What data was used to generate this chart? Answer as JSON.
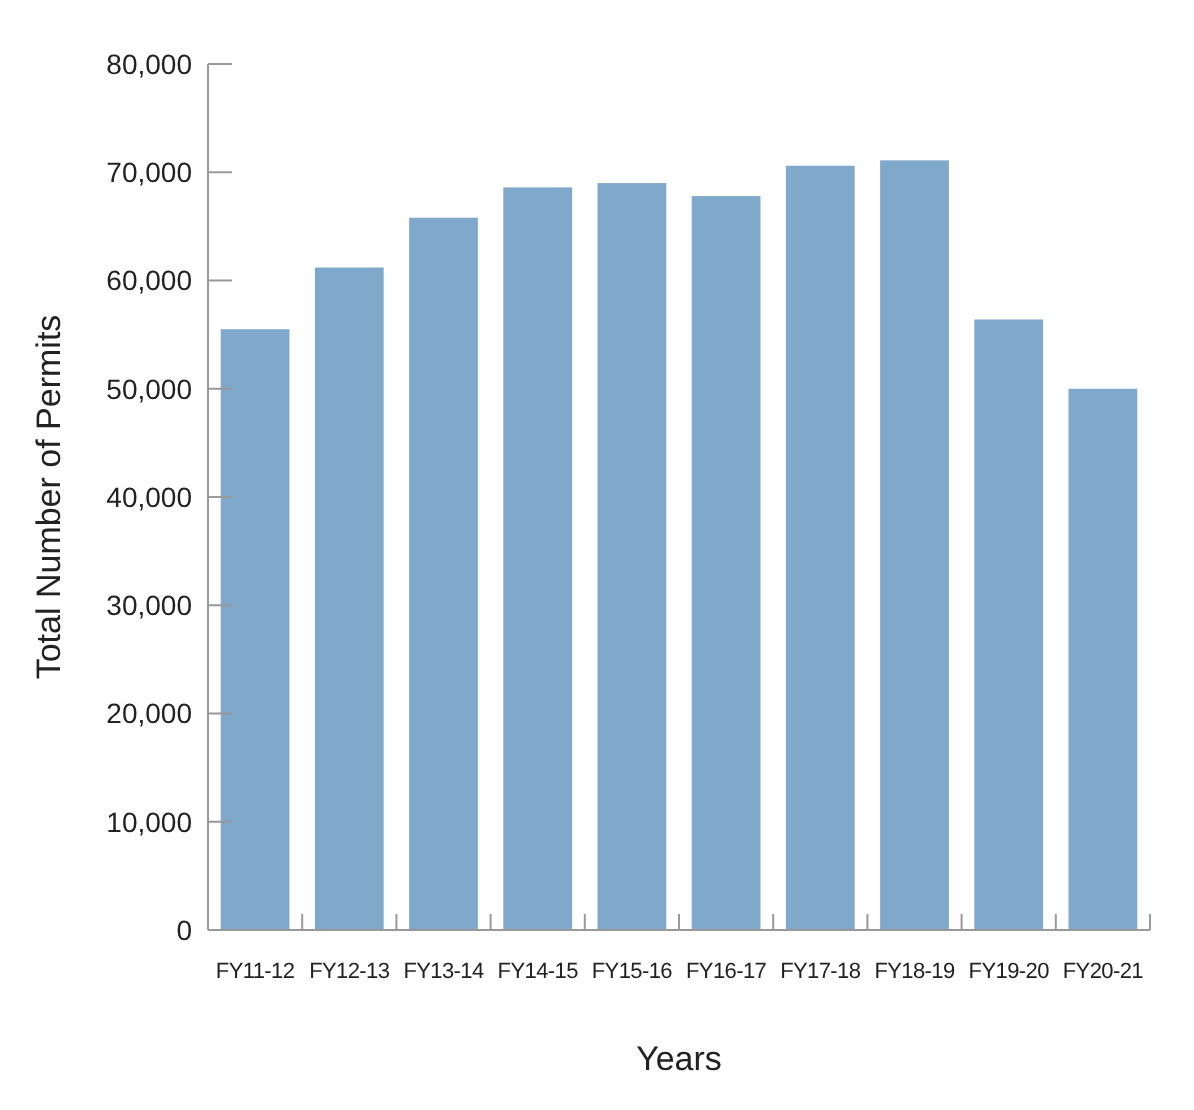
{
  "chart_data": {
    "type": "bar",
    "xlabel": "Years",
    "ylabel": "Total Number of Permits",
    "categories": [
      "FY11-12",
      "FY12-13",
      "FY13-14",
      "FY14-15",
      "FY15-16",
      "FY16-17",
      "FY17-18",
      "FY18-19",
      "FY19-20",
      "FY20-21"
    ],
    "values": [
      55500,
      61200,
      65800,
      68600,
      69000,
      67800,
      70600,
      71100,
      56400,
      50000
    ],
    "color": "#80a8ca",
    "ylim": [
      0,
      80000
    ],
    "yticks": [
      {
        "value": 0,
        "label": "0"
      },
      {
        "value": 10000,
        "label": "10,000"
      },
      {
        "value": 20000,
        "label": "20,000"
      },
      {
        "value": 30000,
        "label": "30,000"
      },
      {
        "value": 40000,
        "label": "40,000"
      },
      {
        "value": 50000,
        "label": "50,000"
      },
      {
        "value": 60000,
        "label": "60,000"
      },
      {
        "value": 70000,
        "label": "70,000"
      },
      {
        "value": 80000,
        "label": "80,000"
      }
    ],
    "grid": false
  }
}
